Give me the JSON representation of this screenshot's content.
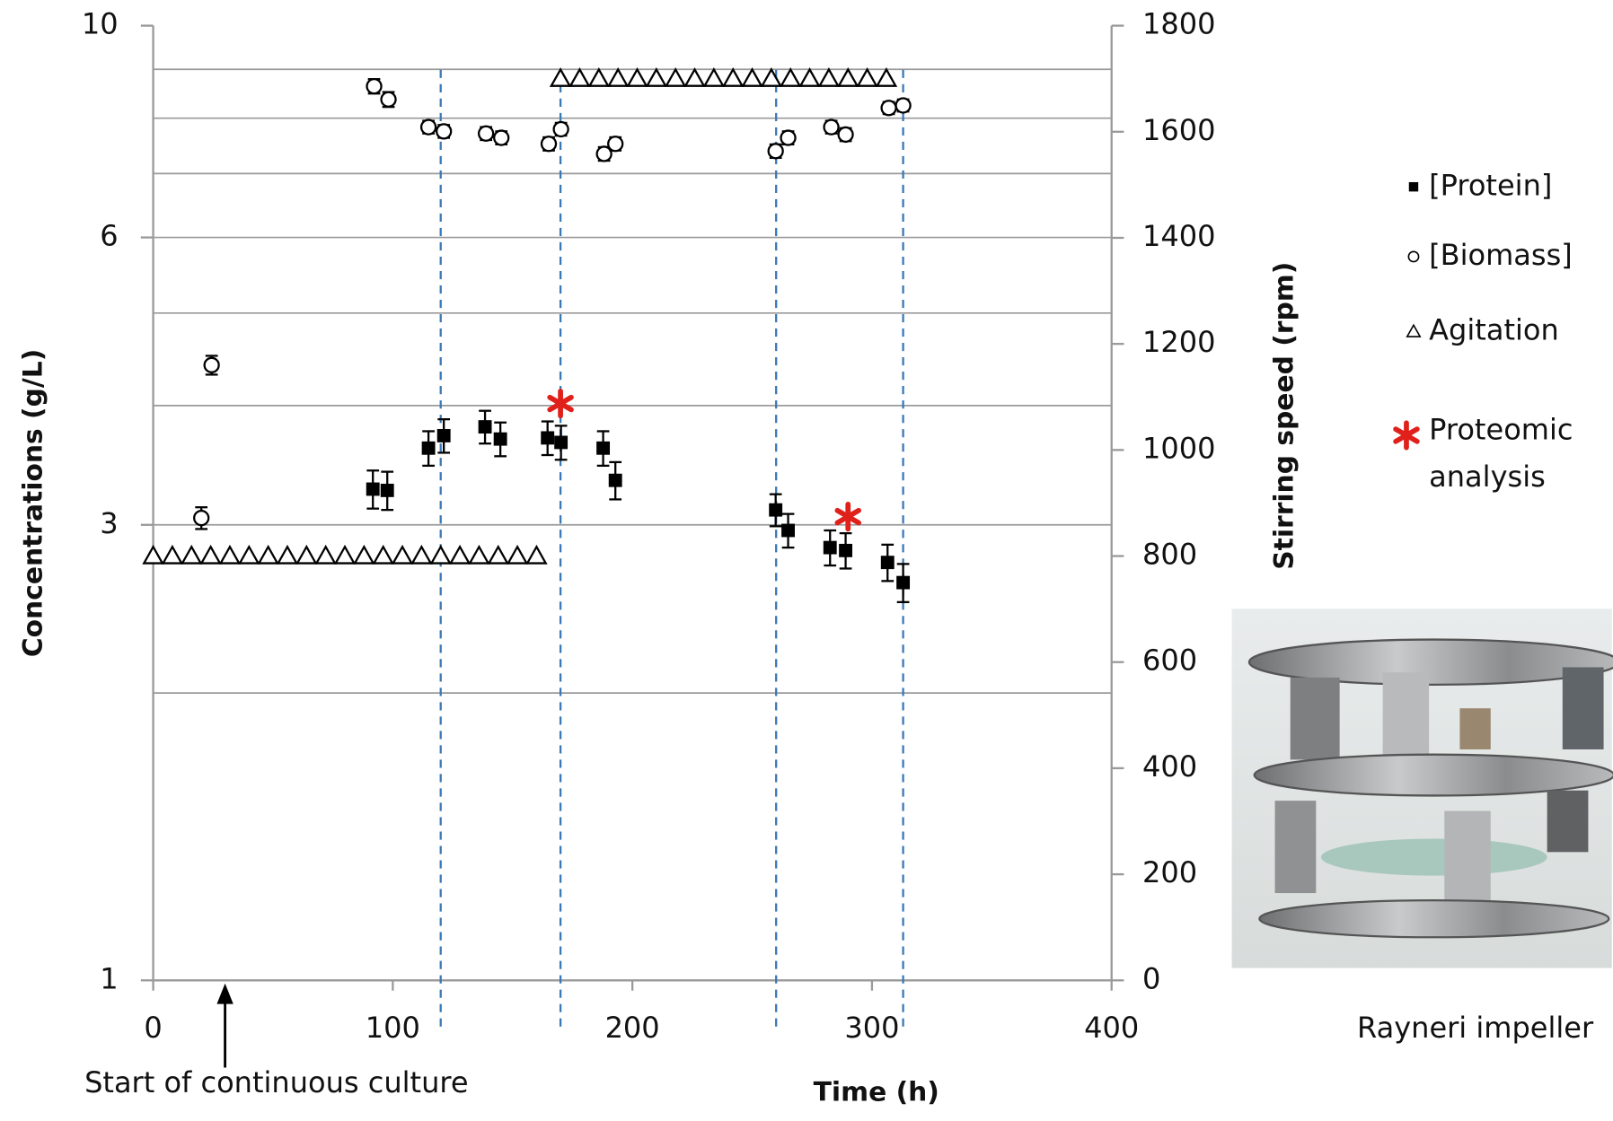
{
  "chart_data": {
    "type": "scatter",
    "x_label": "Time (h)",
    "y_label": "Concentrations (g/L)",
    "y2_label": "Stirring speed (rpm)",
    "xlim": [
      0,
      400
    ],
    "xticks": [
      0,
      100,
      200,
      300,
      400
    ],
    "ylim": [
      1,
      10
    ],
    "yticks": [
      1,
      3,
      6,
      10
    ],
    "yscale": "log",
    "ygrid": [
      2,
      3,
      4,
      5,
      6,
      7,
      8,
      9
    ],
    "y2lim": [
      0,
      1800
    ],
    "y2ticks": [
      0,
      200,
      400,
      600,
      800,
      1000,
      1200,
      1400,
      1600,
      1800
    ],
    "vlines": [
      120,
      170,
      260,
      313
    ],
    "vline_color": "#3a78b5",
    "series": [
      {
        "name": "[Protein]",
        "marker": "square",
        "color": "#000000",
        "x": [
          91.7,
          97.7,
          114.9,
          121.3,
          138.5,
          144.9,
          164.6,
          170.2,
          187.8,
          192.9,
          259.8,
          265,
          282.5,
          289,
          306.5,
          313
        ],
        "values": [
          3.27,
          3.26,
          3.61,
          3.72,
          3.8,
          3.69,
          3.7,
          3.66,
          3.61,
          3.34,
          3.11,
          2.96,
          2.84,
          2.82,
          2.74,
          2.61
        ],
        "errors": [
          0.15,
          0.15,
          0.15,
          0.15,
          0.15,
          0.15,
          0.15,
          0.15,
          0.15,
          0.15,
          0.12,
          0.12,
          0.12,
          0.12,
          0.12,
          0.12
        ]
      },
      {
        "name": "[Biomass]",
        "marker": "circle",
        "color": "#000000",
        "x": [
          20.1,
          24.4,
          92.2,
          98.2,
          114.9,
          121.3,
          138.9,
          145.3,
          165.1,
          170.2,
          188.2,
          192.9,
          259.8,
          265,
          283,
          289,
          307,
          313
        ],
        "values": [
          3.05,
          4.41,
          8.64,
          8.37,
          7.83,
          7.75,
          7.71,
          7.63,
          7.52,
          7.79,
          7.34,
          7.52,
          7.39,
          7.63,
          7.83,
          7.69,
          8.2,
          8.25
        ],
        "errors": [
          0.08,
          0.1,
          0.15,
          0.15,
          0.12,
          0.12,
          0.12,
          0.12,
          0.12,
          0.12,
          0.12,
          0.12,
          0.12,
          0.12,
          0.12,
          0.12,
          0.12,
          0.12
        ]
      },
      {
        "name": "Agitation",
        "marker": "triangle",
        "color": "#000000",
        "axis": "y2",
        "x": [
          0,
          8,
          16,
          24,
          32,
          40,
          48,
          56,
          64,
          72,
          80,
          88,
          96,
          104,
          112,
          120,
          128,
          136,
          144,
          152,
          160,
          170,
          178,
          186,
          194,
          202,
          210,
          218,
          226,
          234,
          242,
          250,
          258,
          266,
          274,
          282,
          290,
          298,
          306
        ],
        "values": [
          800,
          800,
          800,
          800,
          800,
          800,
          800,
          800,
          800,
          800,
          800,
          800,
          800,
          800,
          800,
          800,
          800,
          800,
          800,
          800,
          800,
          1700,
          1700,
          1700,
          1700,
          1700,
          1700,
          1700,
          1700,
          1700,
          1700,
          1700,
          1700,
          1700,
          1700,
          1700,
          1700,
          1700,
          1700
        ]
      },
      {
        "name": "Proteomic analysis",
        "marker": "star",
        "color": "#e0201b",
        "x": [
          170,
          290
        ],
        "values": [
          4.02,
          3.06
        ]
      }
    ],
    "annotation": {
      "text": "Start of continuous culture",
      "x": 30
    }
  },
  "image": {
    "caption": "Rayneri impeller"
  }
}
